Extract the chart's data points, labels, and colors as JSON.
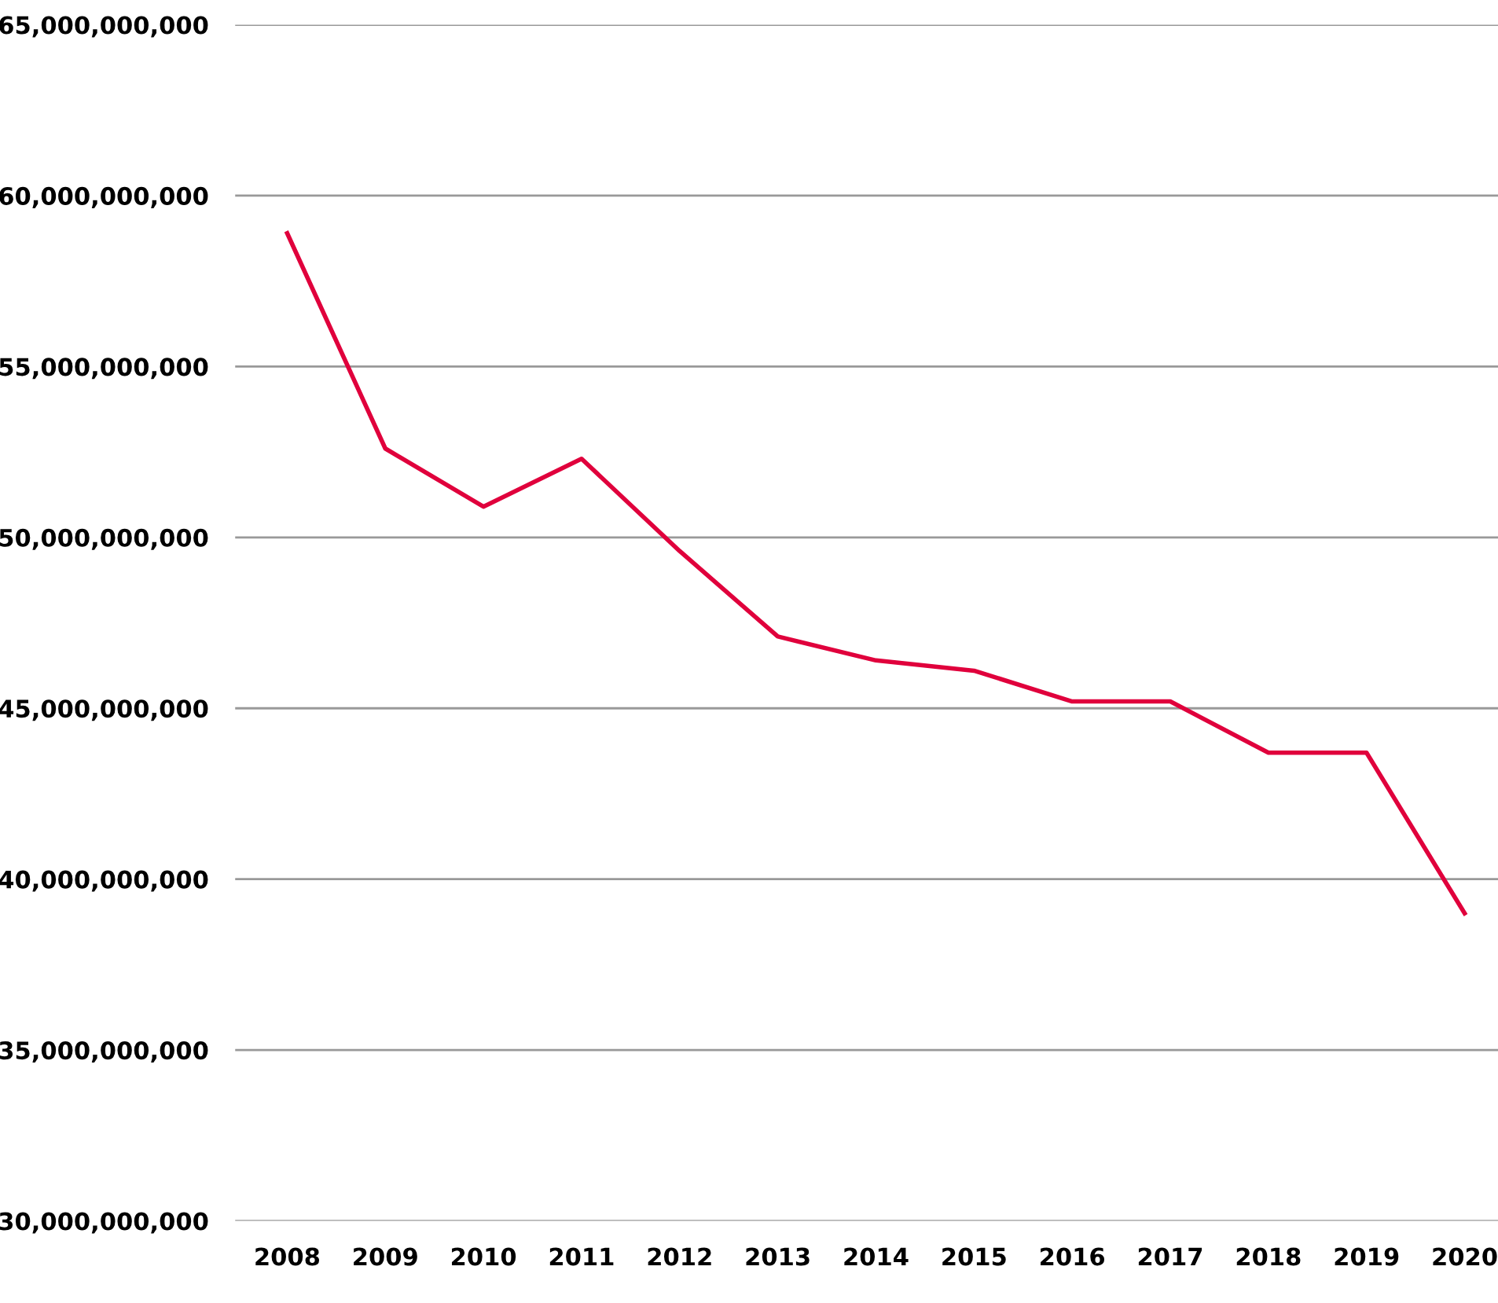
{
  "chart_data": {
    "type": "line",
    "categories": [
      "2008",
      "2009",
      "2010",
      "2011",
      "2012",
      "2013",
      "2014",
      "2015",
      "2016",
      "2017",
      "2018",
      "2019",
      "2020"
    ],
    "series": [
      {
        "color": "#e0003c",
        "values": [
          58900000000,
          52600000000,
          50900000000,
          52300000000,
          49600000000,
          47100000000,
          46400000000,
          46100000000,
          45200000000,
          45200000000,
          43700000000,
          43700000000,
          39000000000
        ]
      }
    ],
    "ylim": [
      30000000000,
      65000000000
    ],
    "yticks": [
      {
        "value": 30000000000,
        "label": "30,000,000,000"
      },
      {
        "value": 35000000000,
        "label": "35,000,000,000"
      },
      {
        "value": 40000000000,
        "label": "40,000,000,000"
      },
      {
        "value": 45000000000,
        "label": "45,000,000,000"
      },
      {
        "value": 50000000000,
        "label": "50,000,000,000"
      },
      {
        "value": 55000000000,
        "label": "55,000,000,000"
      },
      {
        "value": 60000000000,
        "label": "60,000,000,000"
      },
      {
        "value": 65000000000,
        "label": "65,000,000,000"
      }
    ],
    "grid": "y",
    "legend": false,
    "marker": "none",
    "line_style": "solid"
  }
}
